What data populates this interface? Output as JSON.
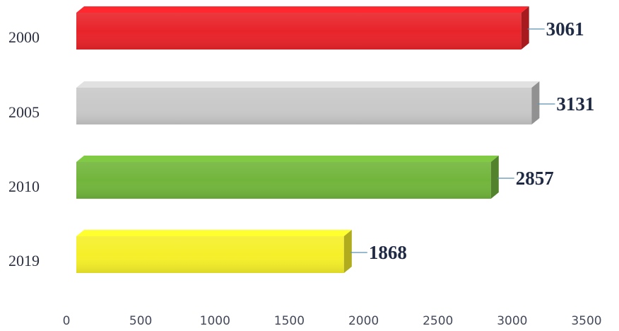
{
  "chart_data": {
    "type": "bar",
    "orientation": "horizontal",
    "title": "",
    "xlabel": "",
    "ylabel": "",
    "categories": [
      "2000",
      "2005",
      "2010",
      "2019"
    ],
    "values": [
      3061,
      3131,
      2857,
      1868
    ],
    "bar_colors": [
      "#e8242a",
      "#c9c9c9",
      "#72b53c",
      "#f5ef2a"
    ],
    "xlim": [
      0,
      3500
    ],
    "xticks": [
      0,
      500,
      1000,
      1500,
      2000,
      2500,
      3000,
      3500
    ],
    "grid": false,
    "legend": "none",
    "style": "3d-bars"
  }
}
